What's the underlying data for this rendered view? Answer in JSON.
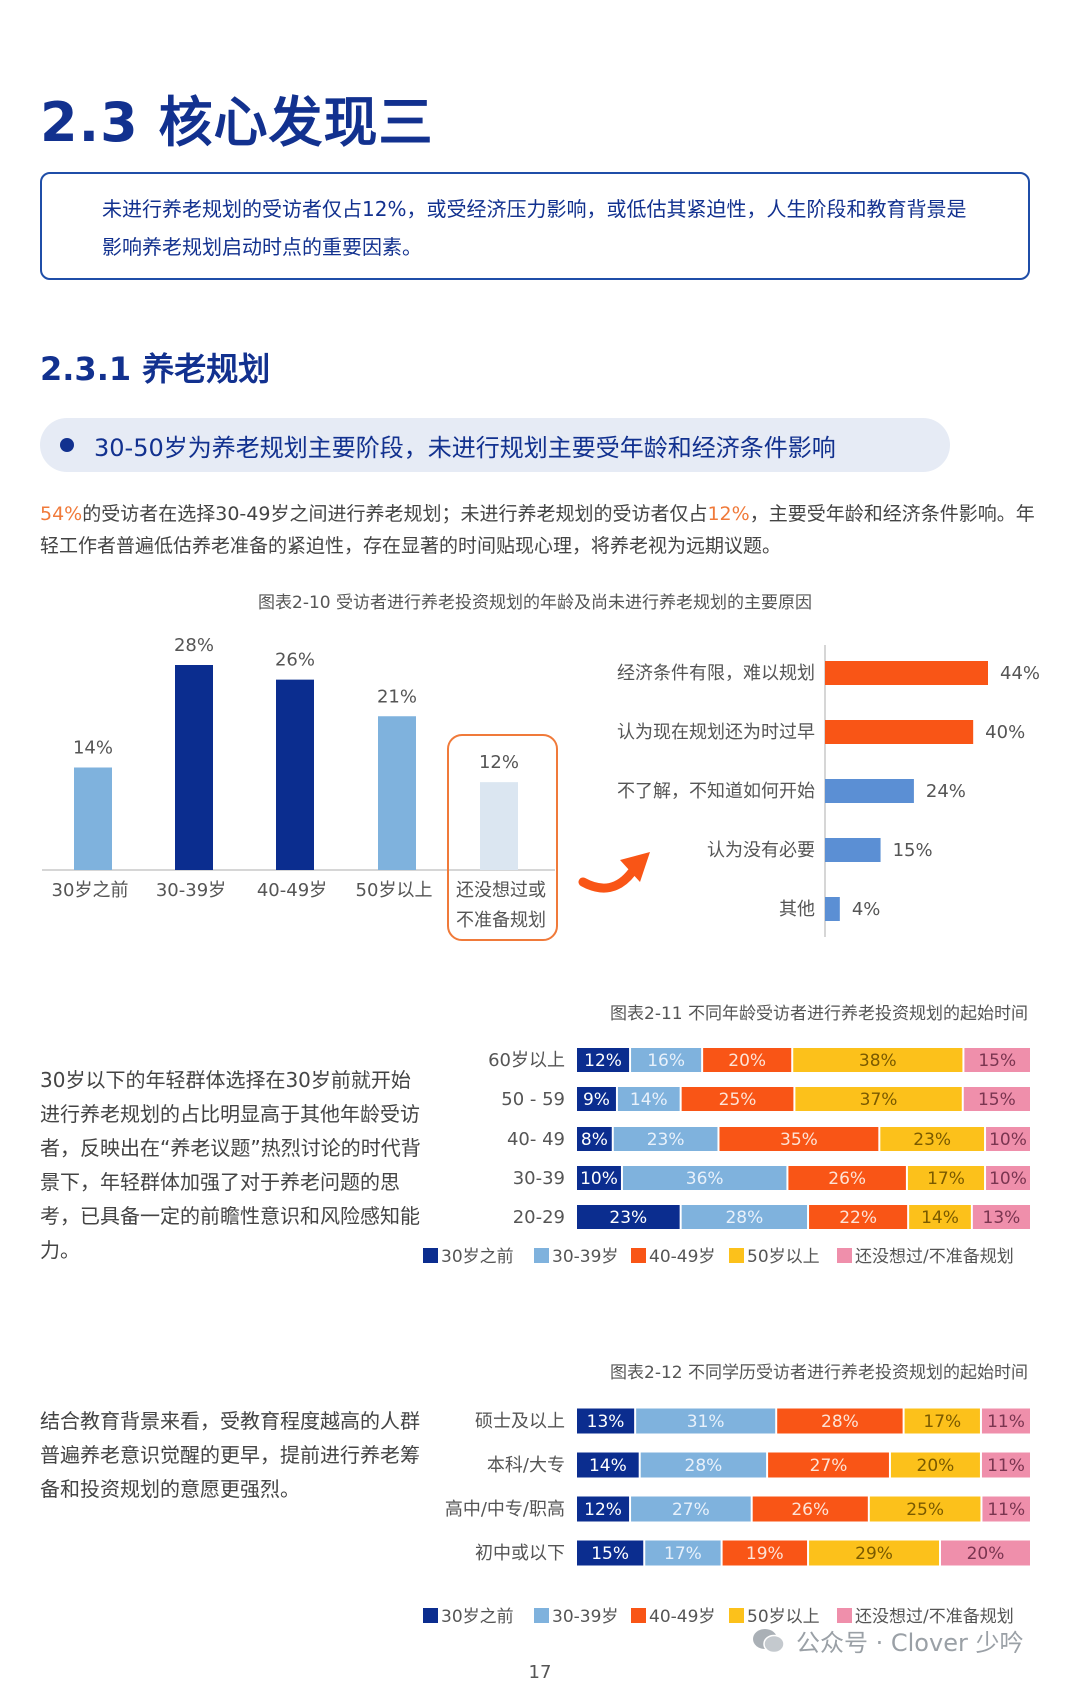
{
  "page": {
    "heading": "2.3 核心发现三",
    "callout": "未进行养老规划的受访者仅占12%，或受经济压力影响，或低估其紧迫性，人生阶段和教育背景是影响养老规划启动时点的重要因素。",
    "subheading": "2.3.1 养老规划",
    "highlight": "30-50岁为养老规划主要阶段，未进行规划主要受年龄和经济条件影响",
    "para": {
      "p1": "54%",
      "p2": "的受访者在选择30-49岁之间进行养老规划；未进行养老规划的受访者仅占",
      "p3": "12%",
      "p4": "，主要受年龄和经济条件影响。年轻工作者普遍低估养老准备的紧迫性，存在显著的时间贴现心理，将养老视为远期议题。"
    },
    "side_text_1": "30岁以下的年轻群体选择在30岁前就开始进行养老规划的占比明显高于其他年龄受访者，反映出在“养老议题”热烈讨论的时代背景下，年轻群体加强了对于养老问题的思考，已具备一定的前瞻性意识和风险感知能力。",
    "side_text_2": "结合教育背景来看，受教育程度越高的人群普遍养老意识觉醒的更早，提前进行养老筹备和投资规划的意愿更强烈。",
    "page_number": "17",
    "watermark": "公众号 · Clover 少吟"
  },
  "colors": {
    "navy": "#0b2d8f",
    "lightblue": "#7fb2dd",
    "orange": "#f95516",
    "yellow": "#fcc11b",
    "pink": "#ef8fab",
    "paleblue": "#dbe6f1",
    "midblue": "#5b8fd4"
  },
  "chart_data": [
    {
      "id": "fig2-10-left",
      "type": "bar",
      "title": "图表2-10 受访者进行养老投资规划的年龄及尚未进行养老规划的主要原因",
      "categories": [
        "30岁之前",
        "30-39岁",
        "40-49岁",
        "50岁以上",
        "还没想过或不准备规划"
      ],
      "values": [
        14,
        28,
        26,
        21,
        12
      ],
      "labels": [
        "14%",
        "28%",
        "26%",
        "21%",
        "12%"
      ],
      "ylim": [
        0,
        30
      ]
    },
    {
      "id": "fig2-10-right",
      "type": "bar",
      "orientation": "horizontal",
      "categories": [
        "经济条件有限，难以规划",
        "认为现在规划还为时过早",
        "不了解，不知道如何开始",
        "认为没有必要",
        "其他"
      ],
      "values": [
        44,
        40,
        24,
        15,
        4
      ],
      "labels": [
        "44%",
        "40%",
        "24%",
        "15%",
        "4%"
      ]
    },
    {
      "id": "fig2-11",
      "type": "bar",
      "stacked": true,
      "orientation": "horizontal",
      "title": "图表2-11 不同年龄受访者进行养老投资规划的起始时间",
      "categories": [
        "60岁以上",
        "50 - 59",
        "40- 49",
        "30-39",
        "20-29"
      ],
      "series": [
        {
          "name": "30岁之前",
          "values": [
            12,
            9,
            8,
            10,
            23
          ]
        },
        {
          "name": "30-39岁",
          "values": [
            16,
            14,
            23,
            36,
            28
          ]
        },
        {
          "name": "40-49岁",
          "values": [
            20,
            25,
            35,
            26,
            22
          ]
        },
        {
          "name": "50岁以上",
          "values": [
            38,
            37,
            23,
            17,
            14
          ]
        },
        {
          "name": "还没想过/不准备规划",
          "values": [
            15,
            15,
            10,
            10,
            13
          ]
        }
      ],
      "legend": "bottom"
    },
    {
      "id": "fig2-12",
      "type": "bar",
      "stacked": true,
      "orientation": "horizontal",
      "title": "图表2-12 不同学历受访者进行养老投资规划的起始时间",
      "categories": [
        "硕士及以上",
        "本科/大专",
        "高中/中专/职高",
        "初中或以下"
      ],
      "series": [
        {
          "name": "30岁之前",
          "values": [
            13,
            14,
            12,
            15
          ]
        },
        {
          "name": "30-39岁",
          "values": [
            31,
            28,
            27,
            17
          ]
        },
        {
          "name": "40-49岁",
          "values": [
            28,
            27,
            26,
            19
          ]
        },
        {
          "name": "50岁以上",
          "values": [
            17,
            20,
            25,
            29
          ]
        },
        {
          "name": "还没想过/不准备规划",
          "values": [
            11,
            11,
            11,
            20
          ]
        }
      ],
      "legend": "bottom"
    }
  ]
}
